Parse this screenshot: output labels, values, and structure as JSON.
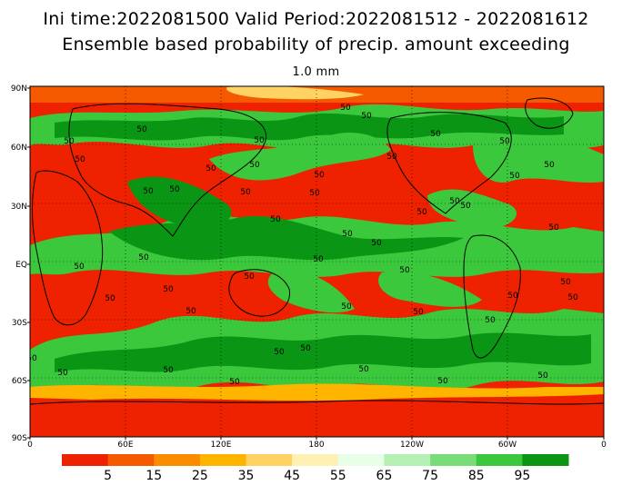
{
  "header": {
    "line1": "Ini time:2022081500   Valid Period:2022081512 - 2022081612",
    "line2": "Ensemble based probability of precip. amount exceeding",
    "threshold": "1.0 mm"
  },
  "axes": {
    "lat_labels": [
      "90N",
      "60N",
      "30N",
      "EQ",
      "30S",
      "60S",
      "90S"
    ],
    "lon_labels": [
      "0",
      "60E",
      "120E",
      "180",
      "120W",
      "60W",
      "0"
    ]
  },
  "colorbar": {
    "colors": [
      "#ee2200",
      "#f55a00",
      "#fa8c00",
      "#ffb400",
      "#ffd264",
      "#fff0b4",
      "#e6ffe6",
      "#b4f0b4",
      "#78dc78",
      "#3cc83c",
      "#0a9614"
    ],
    "labels": [
      "5",
      "15",
      "25",
      "35",
      "45",
      "55",
      "65",
      "75",
      "85",
      "95"
    ]
  },
  "contour_label": "50"
}
